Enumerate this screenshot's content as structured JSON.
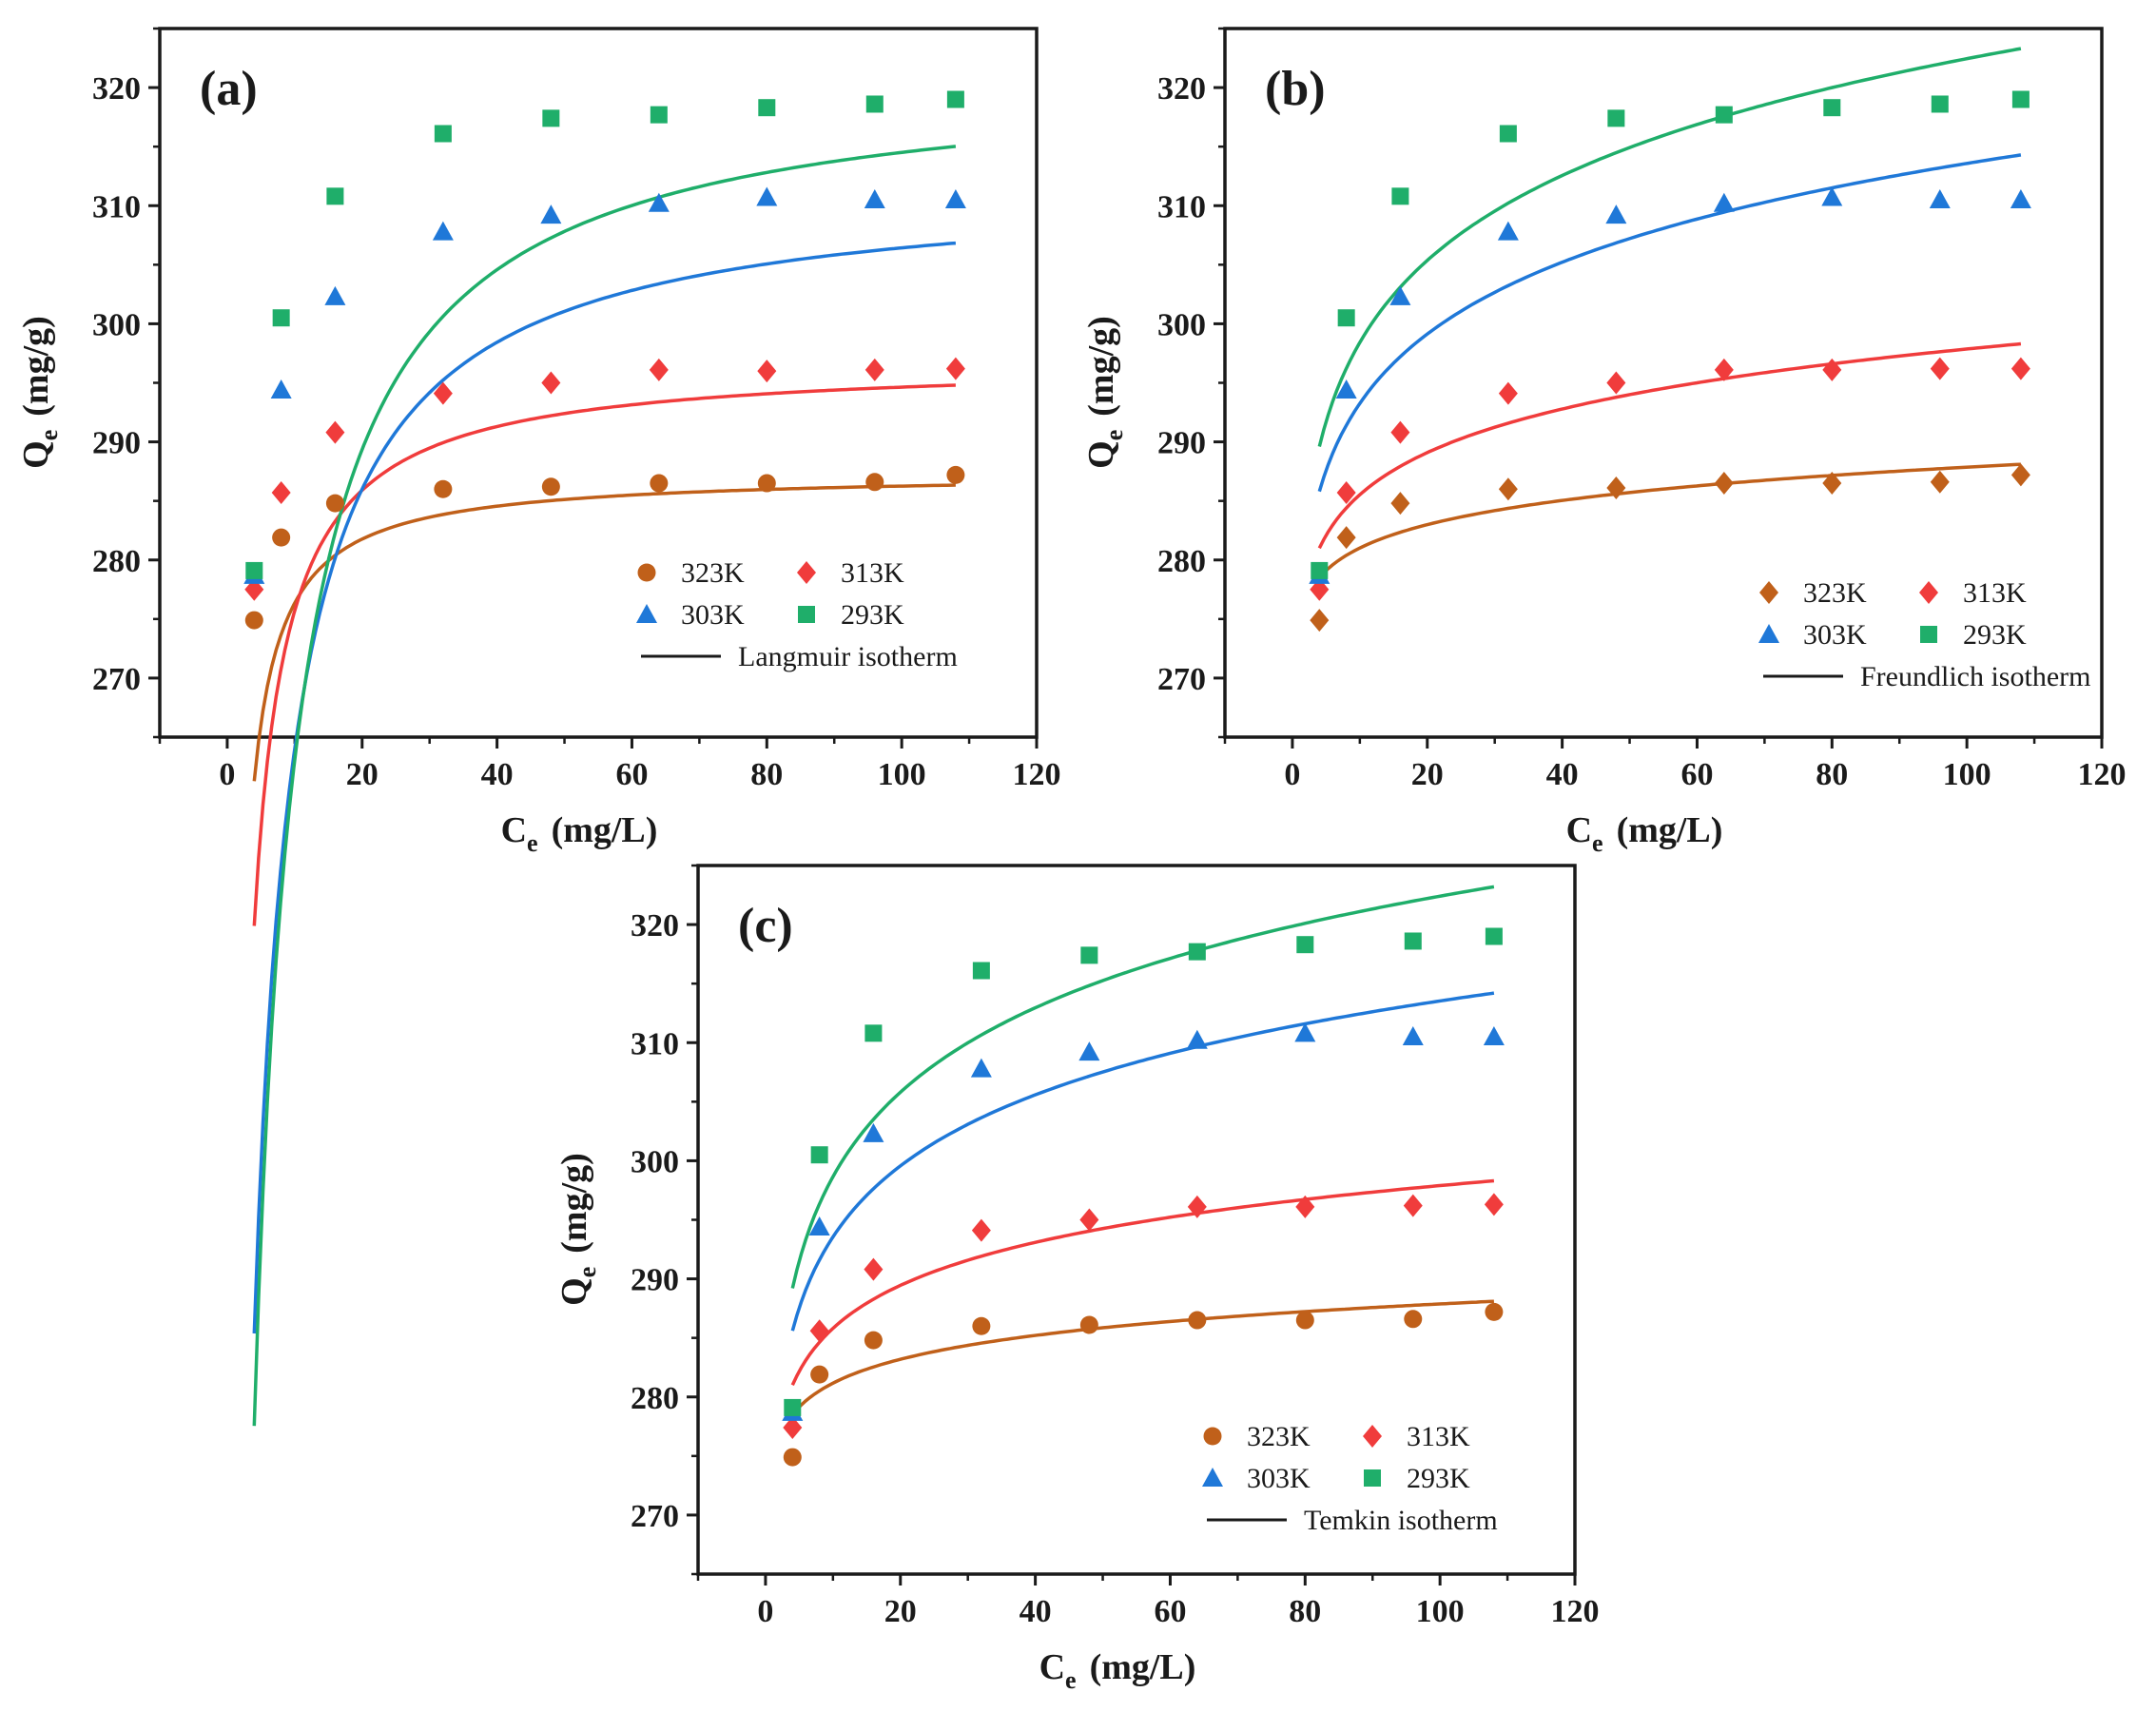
{
  "colors": {
    "323K": "#c0601a",
    "313K": "#f03c3c",
    "303K": "#1f78d8",
    "293K": "#1fae6a",
    "axis": "#1a1a1a"
  },
  "chart_data": [
    {
      "type": "scatter",
      "panel": "(a)",
      "title": "",
      "xlabel": {
        "main": "C",
        "sub": "e",
        "unit": "(mg/L)"
      },
      "ylabel": {
        "main": "Q",
        "sub": "e",
        "unit": "(mg/g)"
      },
      "xlim": [
        -10,
        120
      ],
      "ylim": [
        265,
        325
      ],
      "xticks": [
        0,
        20,
        40,
        60,
        80,
        100,
        120
      ],
      "yticks": [
        270,
        280,
        290,
        300,
        310,
        320
      ],
      "legend_position": "bottom-right",
      "fit_label": "Langmuir isotherm",
      "x": [
        4,
        8,
        16,
        32,
        48,
        64,
        80,
        96,
        108
      ],
      "series": [
        {
          "name": "323K",
          "marker": "circle",
          "values": [
            274.9,
            281.9,
            284.8,
            286.0,
            286.2,
            286.5,
            286.5,
            286.6,
            287.2
          ],
          "fit": {
            "model": "langmuir",
            "qmax": 287.4,
            "K": 2.5
          }
        },
        {
          "name": "313K",
          "marker": "diamond",
          "values": [
            277.5,
            285.7,
            290.8,
            294.1,
            295.0,
            296.1,
            296.0,
            296.1,
            296.2
          ],
          "fit": {
            "model": "langmuir",
            "qmax": 296.9,
            "K": 1.3
          }
        },
        {
          "name": "303K",
          "marker": "triangle",
          "values": [
            278.7,
            294.4,
            302.3,
            307.8,
            309.2,
            310.2,
            310.7,
            310.5,
            310.5
          ],
          "fit": {
            "model": "langmuir",
            "qmax": 312.0,
            "K": 0.55
          }
        },
        {
          "name": "293K",
          "marker": "square",
          "values": [
            279.1,
            300.5,
            310.8,
            316.1,
            317.4,
            317.7,
            318.3,
            318.6,
            319.0
          ],
          "fit": {
            "model": "langmuir",
            "qmax": 321.5,
            "K": 0.45
          }
        }
      ]
    },
    {
      "type": "scatter",
      "panel": "(b)",
      "title": "",
      "xlabel": {
        "main": "C",
        "sub": "e",
        "unit": "(mg/L)"
      },
      "ylabel": {
        "main": "Q",
        "sub": "e",
        "unit": "(mg/g)"
      },
      "xlim": [
        -10,
        120
      ],
      "ylim": [
        265,
        325
      ],
      "xticks": [
        0,
        20,
        40,
        60,
        80,
        100,
        120
      ],
      "yticks": [
        270,
        280,
        290,
        300,
        310,
        320
      ],
      "legend_position": "bottom-right",
      "fit_label": "Freundlich isotherm",
      "x": [
        4,
        8,
        16,
        32,
        48,
        64,
        80,
        96,
        108
      ],
      "series": [
        {
          "name": "323K",
          "marker": "diamond",
          "values": [
            274.9,
            281.9,
            284.8,
            286.0,
            286.1,
            286.5,
            286.5,
            286.6,
            287.2
          ],
          "fit": {
            "model": "freundlich",
            "y4": 278.5,
            "y108": 288.1
          }
        },
        {
          "name": "313K",
          "marker": "diamond",
          "values": [
            277.5,
            285.7,
            290.8,
            294.1,
            295.0,
            296.1,
            296.1,
            296.2,
            296.2
          ],
          "fit": {
            "model": "freundlich",
            "y4": 281.0,
            "y108": 298.3
          }
        },
        {
          "name": "303K",
          "marker": "triangle",
          "values": [
            278.7,
            294.4,
            302.3,
            307.8,
            309.2,
            310.2,
            310.7,
            310.5,
            310.5
          ],
          "fit": {
            "model": "freundlich",
            "y4": 285.8,
            "y108": 314.3
          }
        },
        {
          "name": "293K",
          "marker": "square",
          "values": [
            279.1,
            300.5,
            310.8,
            316.1,
            317.4,
            317.7,
            318.3,
            318.6,
            319.0
          ],
          "fit": {
            "model": "freundlich",
            "y4": 289.6,
            "y108": 323.3
          }
        }
      ]
    },
    {
      "type": "scatter",
      "panel": "(c)",
      "title": "",
      "xlabel": {
        "main": "C",
        "sub": "e",
        "unit": "(mg/L)"
      },
      "ylabel": {
        "main": "Q",
        "sub": "e",
        "unit": "(mg/g)"
      },
      "xlim": [
        -10,
        120
      ],
      "ylim": [
        265,
        325
      ],
      "xticks": [
        0,
        20,
        40,
        60,
        80,
        100,
        120
      ],
      "yticks": [
        270,
        280,
        290,
        300,
        310,
        320
      ],
      "legend_position": "bottom-right",
      "fit_label": "Temkin isotherm",
      "x": [
        4,
        8,
        16,
        32,
        48,
        64,
        80,
        96,
        108
      ],
      "series": [
        {
          "name": "323K",
          "marker": "circle",
          "values": [
            274.9,
            281.9,
            284.8,
            286.0,
            286.1,
            286.5,
            286.5,
            286.6,
            287.2
          ],
          "fit": {
            "model": "temkin",
            "y4": 278.5,
            "y108": 288.1
          }
        },
        {
          "name": "313K",
          "marker": "diamond",
          "values": [
            277.4,
            285.6,
            290.8,
            294.1,
            295.0,
            296.1,
            296.1,
            296.2,
            296.3
          ],
          "fit": {
            "model": "temkin",
            "y4": 281.0,
            "y108": 298.3
          }
        },
        {
          "name": "303K",
          "marker": "triangle",
          "values": [
            278.7,
            294.4,
            302.3,
            307.8,
            309.2,
            310.2,
            310.8,
            310.5,
            310.5
          ],
          "fit": {
            "model": "temkin",
            "y4": 285.6,
            "y108": 314.2
          }
        },
        {
          "name": "293K",
          "marker": "square",
          "values": [
            279.1,
            300.5,
            310.8,
            316.1,
            317.4,
            317.7,
            318.3,
            318.6,
            319.0
          ],
          "fit": {
            "model": "temkin",
            "y4": 289.2,
            "y108": 323.2
          }
        }
      ]
    }
  ]
}
